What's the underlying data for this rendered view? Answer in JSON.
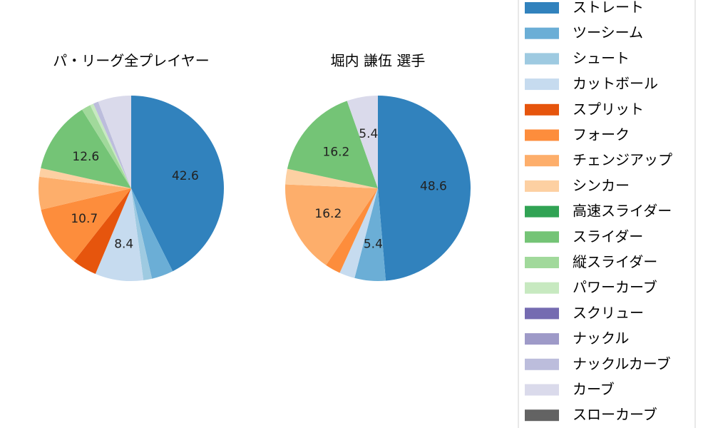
{
  "chart_data": [
    {
      "type": "pie",
      "title": "パ・リーグ全プレイヤー",
      "slices": [
        {
          "name": "ストレート",
          "value": 42.6,
          "label": "42.6"
        },
        {
          "name": "ツーシーム",
          "value": 3.8,
          "label": ""
        },
        {
          "name": "シュート",
          "value": 1.5,
          "label": ""
        },
        {
          "name": "カットボール",
          "value": 8.4,
          "label": "8.4"
        },
        {
          "name": "スプリット",
          "value": 4.3,
          "label": ""
        },
        {
          "name": "フォーク",
          "value": 10.7,
          "label": "10.7"
        },
        {
          "name": "チェンジアップ",
          "value": 5.7,
          "label": ""
        },
        {
          "name": "シンカー",
          "value": 1.5,
          "label": ""
        },
        {
          "name": "高速スライダー",
          "value": 0.0,
          "label": ""
        },
        {
          "name": "スライダー",
          "value": 12.6,
          "label": "12.6"
        },
        {
          "name": "縦スライダー",
          "value": 1.6,
          "label": ""
        },
        {
          "name": "パワーカーブ",
          "value": 0.6,
          "label": ""
        },
        {
          "name": "スクリュー",
          "value": 0.0,
          "label": ""
        },
        {
          "name": "ナックル",
          "value": 0.0,
          "label": ""
        },
        {
          "name": "ナックルカーブ",
          "value": 0.9,
          "label": ""
        },
        {
          "name": "カーブ",
          "value": 5.8,
          "label": ""
        },
        {
          "name": "スローカーブ",
          "value": 0.0,
          "label": ""
        }
      ]
    },
    {
      "type": "pie",
      "title": "堀内 謙伍  選手",
      "slices": [
        {
          "name": "ストレート",
          "value": 48.6,
          "label": "48.6"
        },
        {
          "name": "ツーシーム",
          "value": 5.4,
          "label": "5.4"
        },
        {
          "name": "シュート",
          "value": 0.0,
          "label": ""
        },
        {
          "name": "カットボール",
          "value": 2.7,
          "label": ""
        },
        {
          "name": "スプリット",
          "value": 0.0,
          "label": ""
        },
        {
          "name": "フォーク",
          "value": 2.7,
          "label": ""
        },
        {
          "name": "チェンジアップ",
          "value": 16.2,
          "label": "16.2"
        },
        {
          "name": "シンカー",
          "value": 2.7,
          "label": ""
        },
        {
          "name": "高速スライダー",
          "value": 0.0,
          "label": ""
        },
        {
          "name": "スライダー",
          "value": 16.2,
          "label": "16.2"
        },
        {
          "name": "縦スライダー",
          "value": 0.0,
          "label": ""
        },
        {
          "name": "パワーカーブ",
          "value": 0.0,
          "label": ""
        },
        {
          "name": "スクリュー",
          "value": 0.0,
          "label": ""
        },
        {
          "name": "ナックル",
          "value": 0.0,
          "label": ""
        },
        {
          "name": "ナックルカーブ",
          "value": 0.0,
          "label": ""
        },
        {
          "name": "カーブ",
          "value": 5.4,
          "label": "5.4"
        },
        {
          "name": "スローカーブ",
          "value": 0.0,
          "label": ""
        }
      ]
    }
  ],
  "legend": {
    "placement": "right",
    "items": [
      {
        "label": "ストレート",
        "color": "#3182bd"
      },
      {
        "label": "ツーシーム",
        "color": "#6baed6"
      },
      {
        "label": "シュート",
        "color": "#9ecae1"
      },
      {
        "label": "カットボール",
        "color": "#c6dbef"
      },
      {
        "label": "スプリット",
        "color": "#e6550d"
      },
      {
        "label": "フォーク",
        "color": "#fd8d3c"
      },
      {
        "label": "チェンジアップ",
        "color": "#fdae6b"
      },
      {
        "label": "シンカー",
        "color": "#fdd0a2"
      },
      {
        "label": "高速スライダー",
        "color": "#31a354"
      },
      {
        "label": "スライダー",
        "color": "#74c476"
      },
      {
        "label": "縦スライダー",
        "color": "#a1d99b"
      },
      {
        "label": "パワーカーブ",
        "color": "#c7e9c0"
      },
      {
        "label": "スクリュー",
        "color": "#756bb1"
      },
      {
        "label": "ナックル",
        "color": "#9e9ac8"
      },
      {
        "label": "ナックルカーブ",
        "color": "#bcbddc"
      },
      {
        "label": "カーブ",
        "color": "#dadaeb"
      },
      {
        "label": "スローカーブ",
        "color": "#636363"
      }
    ]
  }
}
